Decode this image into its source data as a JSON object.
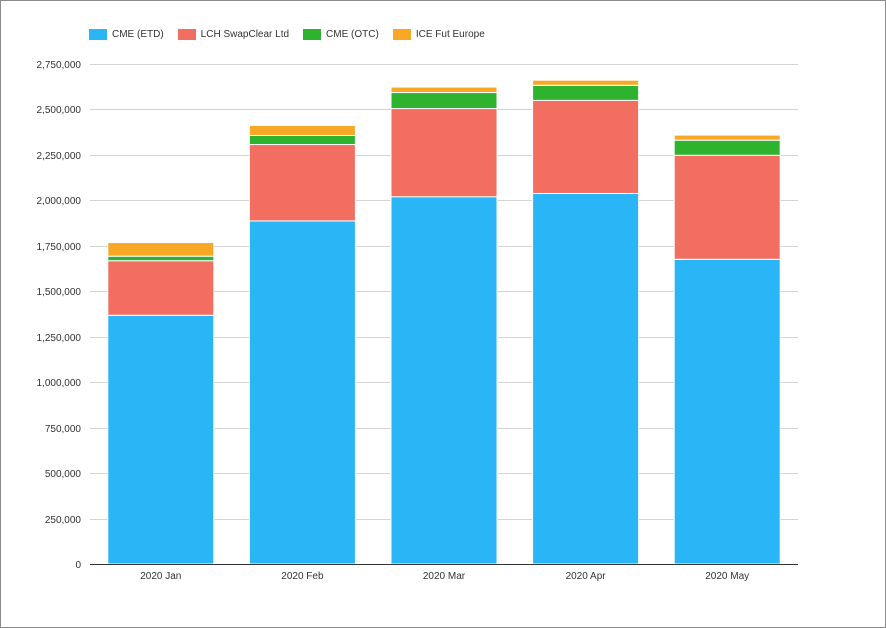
{
  "chart_data": {
    "type": "bar",
    "stacked": true,
    "categories": [
      "2020 Jan",
      "2020 Feb",
      "2020 Mar",
      "2020 Apr",
      "2020 May"
    ],
    "series": [
      {
        "name": "CME (ETD)",
        "color": "#29b5f6",
        "values": [
          1368000,
          1887000,
          2020000,
          2038000,
          1676000
        ]
      },
      {
        "name": "LCH SwapClear Ltd",
        "color": "#f26e60",
        "values": [
          300000,
          420000,
          485000,
          512000,
          572000
        ]
      },
      {
        "name": "CME (OTC)",
        "color": "#2db32d",
        "values": [
          25000,
          50000,
          88000,
          83000,
          83000
        ]
      },
      {
        "name": "ICE Fut Europe",
        "color": "#f9a825",
        "values": [
          75000,
          55000,
          30000,
          28000,
          28000
        ]
      }
    ],
    "y_ticks": [
      "0",
      "250,000",
      "500,000",
      "750,000",
      "1,000,000",
      "1,250,000",
      "1,500,000",
      "1,750,000",
      "2,000,000",
      "2,250,000",
      "2,500,000",
      "2,750,000"
    ],
    "ylim": [
      0,
      2750000
    ],
    "grid": true,
    "legend_position": "top-left"
  }
}
